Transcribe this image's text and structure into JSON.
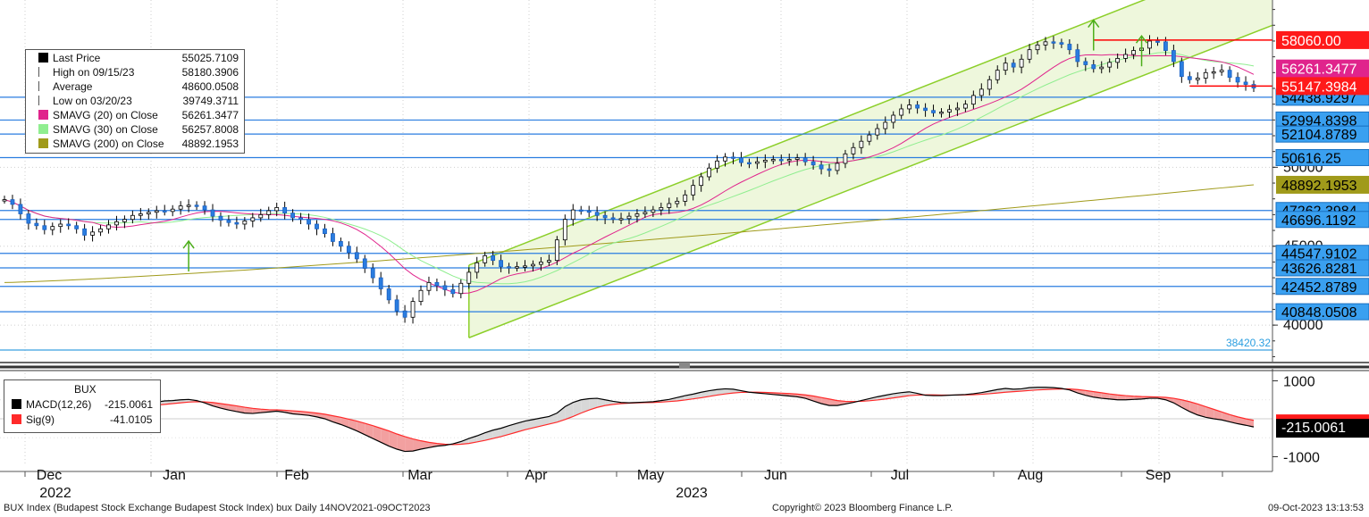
{
  "chart_data": {
    "type": "candlestick",
    "security": "BUX",
    "y_ticks": [
      40000,
      45000,
      50000
    ],
    "y_tick_labels": [
      "40000",
      "45000",
      "50000"
    ],
    "ylim": [
      37800,
      60600
    ],
    "x_month_labels": [
      "Dec",
      "Jan",
      "Feb",
      "Mar",
      "Apr",
      "May",
      "Jun",
      "Jul",
      "Aug",
      "Sep"
    ],
    "x_year_labels": [
      "2022",
      "2023"
    ],
    "legend": {
      "items": [
        {
          "label": "Last Price",
          "value": "55025.7109",
          "color": "#000000",
          "symbol": "square"
        },
        {
          "label": "High on 09/15/23",
          "value": "58180.3906",
          "color": "#555555",
          "symbol": "high"
        },
        {
          "label": "Average",
          "value": "48600.0508",
          "color": "#555555",
          "symbol": "avg"
        },
        {
          "label": "Low on 03/20/23",
          "value": "39749.3711",
          "color": "#555555",
          "symbol": "low"
        },
        {
          "label": "SMAVG (20)  on Close",
          "value": "56261.3477",
          "color": "#e0248c",
          "symbol": "square"
        },
        {
          "label": "SMAVG (30)  on Close",
          "value": "56257.8008",
          "color": "#90ee90",
          "symbol": "square"
        },
        {
          "label": "SMAVG (200)  on Close",
          "value": "48892.1953",
          "color": "#a09a1a",
          "symbol": "square"
        }
      ]
    },
    "horizontal_levels": [
      {
        "value": 54438.9297,
        "label": "54438.9297"
      },
      {
        "value": 52994.8398,
        "label": "52994.8398"
      },
      {
        "value": 52104.8789,
        "label": "52104.8789"
      },
      {
        "value": 50616.25,
        "label": "50616.25"
      },
      {
        "value": 47262.3984,
        "label": "47262.3984"
      },
      {
        "value": 46696.1192,
        "label": "46696.1192"
      },
      {
        "value": 44547.9102,
        "label": "44547.9102"
      },
      {
        "value": 43626.8281,
        "label": "43626.8281"
      },
      {
        "value": 42452.8789,
        "label": "42452.8789"
      },
      {
        "value": 40848.0508,
        "label": "40848.0508"
      },
      {
        "value": 38420.32,
        "label": "38420.32"
      }
    ],
    "resistance_lines": [
      {
        "value": 58060.0,
        "label": "58060.00",
        "color": "#ff0000"
      },
      {
        "value": 55147.3984,
        "label": "55147.3984",
        "color": "#ff0000"
      }
    ],
    "flags": [
      {
        "label": "56261.3477",
        "value": 56261.3477,
        "bg": "#e0248c",
        "fg": "#ffffff"
      },
      {
        "label": "58060.00",
        "value": 58060.0,
        "bg": "#ff1a1a",
        "fg": "#ffffff"
      },
      {
        "label": "55147.3984",
        "value": 55147.3984,
        "bg": "#ff1a1a",
        "fg": "#ffffff"
      },
      {
        "label": "48892.1953",
        "value": 48892.1953,
        "bg": "#a09a1a",
        "fg": "#000000"
      }
    ],
    "channel": {
      "lower_start": 39200,
      "lower_end": 59000,
      "upper_start": 43800,
      "upper_end": 63800
    },
    "sma200": {
      "start": 42700,
      "end": 48892.1953
    },
    "price_series": [
      47950,
      47650,
      47050,
      46450,
      46300,
      46050,
      46250,
      46400,
      46300,
      46100,
      45700,
      45900,
      46100,
      46350,
      46550,
      46700,
      46950,
      47050,
      47150,
      47250,
      47200,
      47350,
      47550,
      47600,
      47550,
      47300,
      46900,
      46650,
      46500,
      46400,
      46600,
      46800,
      47000,
      47250,
      47450,
      47100,
      46800,
      46700,
      46400,
      46100,
      45800,
      45300,
      45000,
      44600,
      44200,
      43600,
      43000,
      42300,
      41600,
      40900,
      40500,
      41500,
      42200,
      42700,
      42500,
      42250,
      42000,
      42650,
      43350,
      43950,
      44400,
      44100,
      43700,
      43650,
      43700,
      43750,
      43850,
      44000,
      44100,
      45400,
      46700,
      47300,
      47250,
      47150,
      46950,
      46800,
      46700,
      46750,
      46900,
      47050,
      47150,
      47300,
      47450,
      47700,
      47850,
      48250,
      48850,
      49400,
      49950,
      50400,
      50650,
      50600,
      50300,
      50250,
      50350,
      50450,
      50500,
      50450,
      50500,
      50600,
      50350,
      50150,
      49900,
      49800,
      50250,
      50850,
      51250,
      51650,
      52050,
      52450,
      52850,
      53300,
      53700,
      53950,
      53750,
      53600,
      53450,
      53500,
      53650,
      53750,
      54000,
      54550,
      54950,
      55550,
      56150,
      56600,
      56350,
      56850,
      57450,
      57750,
      57950,
      57900,
      57800,
      57450,
      56700,
      56500,
      56250,
      56350,
      56650,
      56900,
      57150,
      57400,
      57550,
      58000,
      57950,
      57400,
      56700,
      55750,
      55550,
      55650,
      56000,
      56050,
      56150,
      55700,
      55400,
      55250,
      55025.71
    ],
    "macd": {
      "label": "MACD(12,26)",
      "value": "-215.0061",
      "signal_label": "Sig(9)",
      "signal_value": "-41.0105",
      "ylim": [
        -1200,
        1200
      ],
      "y_ticks": [
        1000,
        -1000
      ],
      "y_tick_labels": [
        "1000",
        "-1000"
      ],
      "flag": "-215.0061",
      "macd_line": [
        900,
        640,
        390,
        180,
        60,
        0,
        50,
        80,
        120,
        140,
        180,
        220,
        250,
        300,
        340,
        370,
        390,
        410,
        430,
        440,
        470,
        480,
        500,
        510,
        480,
        420,
        340,
        280,
        230,
        190,
        150,
        140,
        160,
        180,
        200,
        170,
        130,
        110,
        90,
        50,
        0,
        -80,
        -150,
        -230,
        -320,
        -420,
        -520,
        -620,
        -720,
        -800,
        -860,
        -850,
        -800,
        -760,
        -720,
        -700,
        -660,
        -600,
        -520,
        -450,
        -370,
        -300,
        -250,
        -180,
        -120,
        -60,
        -20,
        20,
        60,
        150,
        320,
        430,
        500,
        530,
        540,
        500,
        460,
        430,
        420,
        430,
        440,
        450,
        480,
        510,
        560,
        610,
        650,
        700,
        740,
        770,
        790,
        780,
        740,
        700,
        680,
        660,
        640,
        620,
        600,
        580,
        540,
        470,
        400,
        350,
        350,
        390,
        430,
        480,
        530,
        580,
        620,
        660,
        690,
        710,
        670,
        620,
        610,
        610,
        620,
        630,
        640,
        660,
        690,
        730,
        770,
        800,
        780,
        790,
        820,
        830,
        830,
        820,
        800,
        760,
        680,
        620,
        570,
        540,
        520,
        500,
        500,
        510,
        520,
        540,
        540,
        500,
        420,
        300,
        190,
        100,
        40,
        0,
        -30,
        -80,
        -130,
        -170,
        -215.0061
      ],
      "signal_line": [
        600,
        560,
        510,
        450,
        390,
        330,
        280,
        240,
        210,
        195,
        190,
        195,
        205,
        225,
        245,
        270,
        295,
        315,
        340,
        360,
        380,
        400,
        420,
        440,
        450,
        445,
        430,
        400,
        370,
        340,
        305,
        275,
        255,
        240,
        235,
        225,
        210,
        195,
        175,
        150,
        120,
        80,
        40,
        -10,
        -60,
        -120,
        -180,
        -250,
        -320,
        -400,
        -470,
        -530,
        -580,
        -620,
        -650,
        -670,
        -680,
        -670,
        -650,
        -610,
        -570,
        -520,
        -470,
        -410,
        -350,
        -290,
        -240,
        -190,
        -140,
        -90,
        -20,
        60,
        150,
        230,
        300,
        350,
        380,
        400,
        410,
        420,
        425,
        430,
        440,
        455,
        470,
        495,
        525,
        555,
        590,
        625,
        655,
        680,
        695,
        700,
        700,
        695,
        685,
        675,
        665,
        650,
        630,
        600,
        560,
        520,
        480,
        460,
        455,
        460,
        475,
        495,
        520,
        550,
        580,
        610,
        625,
        630,
        630,
        625,
        625,
        625,
        630,
        635,
        645,
        660,
        680,
        700,
        715,
        730,
        745,
        760,
        770,
        780,
        785,
        785,
        770,
        745,
        715,
        685,
        655,
        630,
        610,
        595,
        585,
        580,
        575,
        565,
        540,
        500,
        450,
        390,
        320,
        250,
        180,
        110,
        50,
        0,
        -41.0105
      ]
    },
    "footer": {
      "left": "BUX Index (Budapest Stock Exchange Budapest Stock Index) bux  Daily 14NOV2021-09OCT2023",
      "center": "Copyright© 2023 Bloomberg Finance L.P.",
      "right": "09-Oct-2023 13:13:53"
    }
  }
}
